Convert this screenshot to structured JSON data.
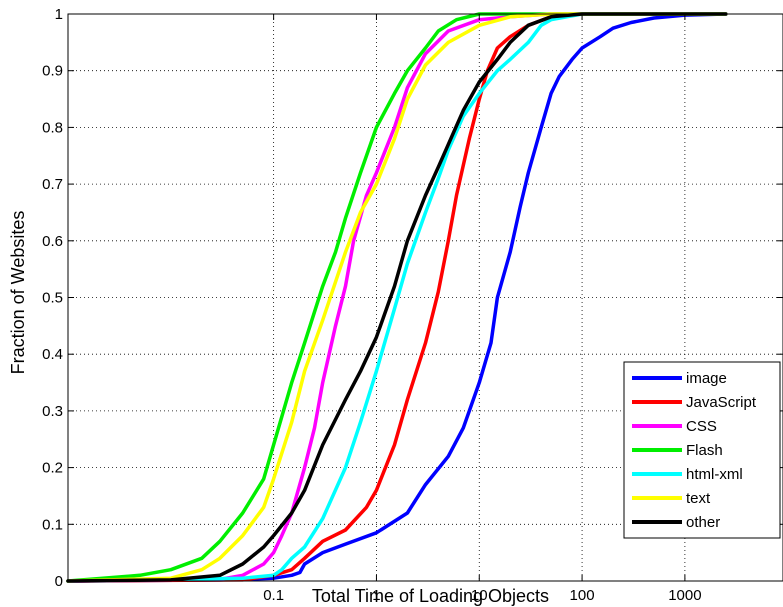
{
  "chart_data": {
    "type": "line",
    "xlabel": "Total Time of Loading Objects",
    "ylabel": "Fraction of Websites",
    "x_scale": "log",
    "xlim": [
      0.001,
      9000
    ],
    "ylim": [
      0,
      1
    ],
    "x_ticks": [
      0.1,
      1,
      10,
      100,
      1000
    ],
    "x_tick_labels": [
      "0.1",
      "1",
      "10",
      "100",
      "1000"
    ],
    "y_ticks": [
      0,
      0.1,
      0.2,
      0.3,
      0.4,
      0.5,
      0.6,
      0.7,
      0.8,
      0.9,
      1
    ],
    "y_tick_labels": [
      "0",
      "0.1",
      "0.2",
      "0.3",
      "0.4",
      "0.5",
      "0.6",
      "0.7",
      "0.8",
      "0.9",
      "1"
    ],
    "grid": true,
    "legend_position": "bottom-right",
    "series": [
      {
        "name": "image",
        "color": "#0000ff",
        "x": [
          0.001,
          0.03,
          0.1,
          0.15,
          0.18,
          0.2,
          0.3,
          0.5,
          1,
          2,
          3,
          5,
          7,
          10,
          13,
          15,
          20,
          25,
          30,
          40,
          50,
          60,
          80,
          100,
          150,
          200,
          300,
          500,
          1000,
          2500
        ],
        "y": [
          0,
          0.002,
          0.005,
          0.01,
          0.015,
          0.03,
          0.05,
          0.065,
          0.085,
          0.12,
          0.17,
          0.22,
          0.27,
          0.35,
          0.42,
          0.5,
          0.58,
          0.66,
          0.72,
          0.8,
          0.86,
          0.89,
          0.92,
          0.94,
          0.96,
          0.975,
          0.985,
          0.993,
          0.998,
          1
        ]
      },
      {
        "name": "JavaScript",
        "color": "#ff0000",
        "x": [
          0.001,
          0.05,
          0.1,
          0.15,
          0.2,
          0.3,
          0.5,
          0.8,
          1,
          1.5,
          2,
          3,
          4,
          5,
          6,
          8,
          10,
          12,
          15,
          20,
          30,
          50,
          100,
          2500
        ],
        "y": [
          0,
          0.002,
          0.01,
          0.02,
          0.04,
          0.07,
          0.09,
          0.13,
          0.16,
          0.24,
          0.32,
          0.42,
          0.51,
          0.6,
          0.68,
          0.78,
          0.85,
          0.9,
          0.94,
          0.96,
          0.98,
          0.995,
          1,
          1
        ]
      },
      {
        "name": "CSS",
        "color": "#ff00ff",
        "x": [
          0.001,
          0.03,
          0.05,
          0.08,
          0.1,
          0.12,
          0.15,
          0.2,
          0.25,
          0.3,
          0.4,
          0.5,
          0.6,
          0.8,
          1,
          1.5,
          2,
          3,
          5,
          10,
          20,
          50,
          2500
        ],
        "y": [
          0,
          0.003,
          0.01,
          0.03,
          0.05,
          0.08,
          0.12,
          0.2,
          0.27,
          0.35,
          0.45,
          0.52,
          0.6,
          0.68,
          0.72,
          0.8,
          0.87,
          0.93,
          0.97,
          0.99,
          0.995,
          1,
          1
        ]
      },
      {
        "name": "Flash",
        "color": "#00ee00",
        "x": [
          0.001,
          0.005,
          0.01,
          0.02,
          0.03,
          0.05,
          0.08,
          0.1,
          0.15,
          0.2,
          0.3,
          0.4,
          0.5,
          0.7,
          1,
          1.5,
          2,
          3,
          4,
          6,
          10,
          20,
          2500
        ],
        "y": [
          0,
          0.01,
          0.02,
          0.04,
          0.07,
          0.12,
          0.18,
          0.24,
          0.35,
          0.42,
          0.52,
          0.58,
          0.64,
          0.72,
          0.8,
          0.86,
          0.9,
          0.94,
          0.97,
          0.99,
          1,
          1,
          1
        ]
      },
      {
        "name": "html-xml",
        "color": "#00ffff",
        "x": [
          0.001,
          0.05,
          0.1,
          0.12,
          0.15,
          0.2,
          0.3,
          0.5,
          0.7,
          1,
          1.5,
          2,
          3,
          4,
          5,
          7,
          10,
          15,
          20,
          30,
          40,
          50,
          100,
          2500
        ],
        "y": [
          0,
          0.005,
          0.01,
          0.02,
          0.04,
          0.06,
          0.11,
          0.2,
          0.28,
          0.37,
          0.48,
          0.56,
          0.65,
          0.71,
          0.76,
          0.82,
          0.86,
          0.9,
          0.92,
          0.95,
          0.98,
          0.99,
          1,
          1
        ]
      },
      {
        "name": "text",
        "color": "#ffff00",
        "x": [
          0.001,
          0.01,
          0.02,
          0.03,
          0.05,
          0.08,
          0.1,
          0.15,
          0.2,
          0.3,
          0.5,
          0.7,
          1,
          1.5,
          2,
          3,
          5,
          10,
          20,
          50,
          100,
          2500
        ],
        "y": [
          0,
          0.005,
          0.02,
          0.04,
          0.08,
          0.13,
          0.18,
          0.28,
          0.37,
          0.46,
          0.58,
          0.65,
          0.7,
          0.78,
          0.85,
          0.91,
          0.95,
          0.98,
          0.995,
          1,
          1,
          1
        ]
      },
      {
        "name": "other",
        "color": "#000000",
        "x": [
          0.001,
          0.01,
          0.03,
          0.05,
          0.08,
          0.1,
          0.15,
          0.2,
          0.3,
          0.5,
          0.7,
          1,
          1.5,
          2,
          3,
          4,
          5,
          7,
          10,
          15,
          20,
          30,
          50,
          100,
          2500
        ],
        "y": [
          0,
          0.002,
          0.01,
          0.03,
          0.06,
          0.08,
          0.12,
          0.16,
          0.24,
          0.32,
          0.37,
          0.43,
          0.52,
          0.6,
          0.68,
          0.73,
          0.77,
          0.83,
          0.88,
          0.92,
          0.95,
          0.98,
          0.995,
          1,
          1
        ]
      }
    ]
  }
}
